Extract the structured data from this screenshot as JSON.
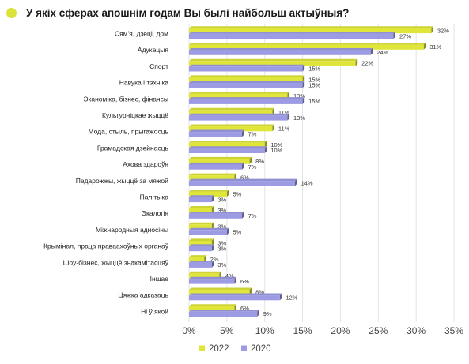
{
  "header": {
    "title": "У якіх сферах апошнім годам Вы былі найбольш актыўныя?",
    "dot_color": "#dbe23b"
  },
  "chart_data": {
    "type": "bar",
    "orientation": "horizontal",
    "title": "У якіх сферах апошнім годам Вы былі найбольш актыўныя?",
    "xlabel": "",
    "ylabel": "",
    "xlim": [
      0,
      35
    ],
    "x_ticks": [
      0,
      5,
      10,
      15,
      20,
      25,
      30,
      35
    ],
    "tick_suffix": "%",
    "grid": true,
    "legend_position": "bottom",
    "categories": [
      "Сям'я, дзеці, дом",
      "Адукацыя",
      "Спорт",
      "Навука і тэхніка",
      "Эканоміка, бізнес, фінансы",
      "Культурніцкае жыццё",
      "Мода, стыль, прыгажосць",
      "Грамадская дзейнасць",
      "Ахова здароўя",
      "Падарожжы, жыццё за мяжой",
      "Палітыка",
      "Экалогія",
      "Міжнародныя адносіны",
      "Крымінал, праца праваахоўных органаў",
      "Шоу-бізнес, жыццё знакамітасцяў",
      "Іншае",
      "Цяжка адказаць",
      "Ні ў якой"
    ],
    "series": [
      {
        "name": "2022",
        "color": "#e0e53a",
        "values": [
          32,
          31,
          22,
          15,
          13,
          11,
          11,
          10,
          8,
          6,
          5,
          3,
          3,
          3,
          2,
          4,
          8,
          6
        ]
      },
      {
        "name": "2020",
        "color": "#9c9be3",
        "values": [
          27,
          24,
          15,
          15,
          15,
          13,
          7,
          10,
          7,
          14,
          3,
          7,
          5,
          3,
          3,
          6,
          12,
          9
        ]
      }
    ]
  }
}
